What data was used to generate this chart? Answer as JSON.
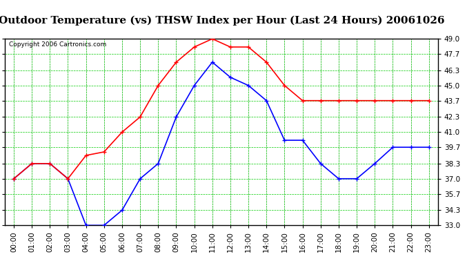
{
  "title": "Outdoor Temperature (vs) THSW Index per Hour (Last 24 Hours) 20061026",
  "copyright": "Copyright 2006 Cartronics.com",
  "hours": [
    "00:00",
    "01:00",
    "02:00",
    "03:00",
    "04:00",
    "05:00",
    "06:00",
    "07:00",
    "08:00",
    "09:00",
    "10:00",
    "11:00",
    "12:00",
    "13:00",
    "14:00",
    "15:00",
    "16:00",
    "17:00",
    "18:00",
    "19:00",
    "20:00",
    "21:00",
    "22:00",
    "23:00"
  ],
  "outdoor_temp": [
    37.0,
    38.3,
    38.3,
    37.0,
    33.0,
    33.0,
    34.3,
    37.0,
    38.3,
    42.3,
    45.0,
    47.0,
    45.7,
    45.0,
    43.7,
    40.3,
    40.3,
    38.3,
    37.0,
    37.0,
    38.3,
    39.7,
    39.7,
    39.7
  ],
  "thsw_index": [
    37.0,
    38.3,
    38.3,
    37.0,
    39.0,
    39.3,
    41.0,
    42.3,
    45.0,
    47.0,
    48.3,
    49.0,
    48.3,
    48.3,
    47.0,
    45.0,
    43.7,
    43.7,
    43.7,
    43.7,
    43.7,
    43.7,
    43.7,
    43.7
  ],
  "temp_color": "#0000ff",
  "thsw_color": "#ff0000",
  "grid_color": "#00cc00",
  "bg_color": "#ffffff",
  "ymin": 33.0,
  "ymax": 49.0,
  "yticks": [
    33.0,
    34.3,
    35.7,
    37.0,
    38.3,
    39.7,
    41.0,
    42.3,
    43.7,
    45.0,
    46.3,
    47.7,
    49.0
  ],
  "title_fontsize": 11,
  "copyright_fontsize": 6.5,
  "tick_fontsize": 7.5,
  "marker": "+",
  "markersize": 4,
  "linewidth": 1.2
}
